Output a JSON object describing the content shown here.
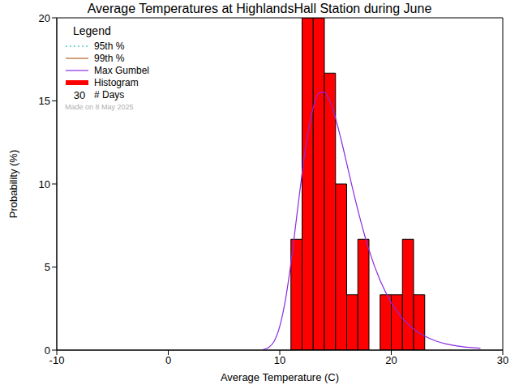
{
  "chart_data": {
    "type": "histogram",
    "title": "Average Temperatures at HighlandsHall Station during June",
    "x_label": "Average Temperature (C)",
    "y_label": "Probability (%)",
    "bins": [
      11,
      12,
      13,
      14,
      15,
      16,
      17,
      18,
      19,
      20,
      21,
      22,
      23
    ],
    "values": [
      6.67,
      20,
      20,
      16.67,
      10,
      3.33,
      6.67,
      0,
      3.33,
      3.33,
      6.67,
      3.33
    ],
    "color": "#ff0000",
    "curve": {
      "name": "Max Gumbel",
      "color": "#8a2be2",
      "x": [
        8.5,
        9,
        9.5,
        10,
        10.5,
        11,
        11.5,
        12,
        12.5,
        13,
        13.5,
        14,
        14.5,
        15,
        15.5,
        16,
        16.5,
        17,
        17.5,
        18,
        19,
        20,
        21,
        22,
        23,
        24,
        25,
        26,
        27,
        28
      ],
      "values": [
        0.03,
        0.16,
        0.54,
        1.43,
        2.99,
        5.24,
        7.93,
        10.64,
        12.97,
        14.6,
        15.47,
        15.52,
        14.97,
        13.96,
        12.67,
        11.25,
        9.81,
        8.44,
        7.17,
        6.03,
        4.19,
        2.85,
        1.91,
        1.27,
        0.84,
        0.55,
        0.36,
        0.24,
        0.16,
        0.1
      ]
    },
    "legend_title": "Legend",
    "legend_entries": [
      {
        "name": "95th %",
        "color": "#00b0b0",
        "line_style": "dotted"
      },
      {
        "name": "99th %",
        "color": "#b0602a",
        "line_style": "solid"
      },
      {
        "name": "Max Gumbel",
        "color": "#8a2be2",
        "line_style": "solid"
      },
      {
        "name": "Histogram",
        "color": "#ff0000",
        "line_style": "thick"
      }
    ],
    "days": 30,
    "days_label": "# Days",
    "note": "Made on 8 May 2025",
    "xlim": [
      -10,
      30
    ],
    "xticks": [
      -10,
      0,
      10,
      20,
      30
    ],
    "ylim": [
      0,
      20
    ],
    "yticks": [
      0,
      5,
      10,
      15,
      20
    ],
    "legend": "upper left"
  }
}
